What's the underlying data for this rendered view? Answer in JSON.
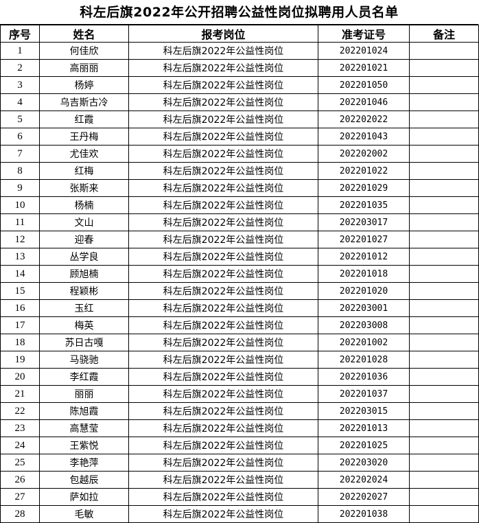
{
  "title": "科左后旗2022年公开招聘公益性岗位拟聘用人员名单",
  "headers": [
    "序号",
    "姓名",
    "报考岗位",
    "准考证号",
    "备注"
  ],
  "rows": [
    [
      "1",
      "何佳欣",
      "科左后旗2022年公益性岗位",
      "202201024",
      ""
    ],
    [
      "2",
      "高丽丽",
      "科左后旗2022年公益性岗位",
      "202201021",
      ""
    ],
    [
      "3",
      "杨婷",
      "科左后旗2022年公益性岗位",
      "202201050",
      ""
    ],
    [
      "4",
      "乌吉斯古冷",
      "科左后旗2022年公益性岗位",
      "202201046",
      ""
    ],
    [
      "5",
      "红霞",
      "科左后旗2022年公益性岗位",
      "202202022",
      ""
    ],
    [
      "6",
      "王丹梅",
      "科左后旗2022年公益性岗位",
      "202201043",
      ""
    ],
    [
      "7",
      "尤佳欢",
      "科左后旗2022年公益性岗位",
      "202202002",
      ""
    ],
    [
      "8",
      "红梅",
      "科左后旗2022年公益性岗位",
      "202201022",
      ""
    ],
    [
      "9",
      "张斯来",
      "科左后旗2022年公益性岗位",
      "202201029",
      ""
    ],
    [
      "10",
      "杨楠",
      "科左后旗2022年公益性岗位",
      "202201035",
      ""
    ],
    [
      "11",
      "文山",
      "科左后旗2022年公益性岗位",
      "202203017",
      ""
    ],
    [
      "12",
      "迎春",
      "科左后旗2022年公益性岗位",
      "202201027",
      ""
    ],
    [
      "13",
      "丛学良",
      "科左后旗2022年公益性岗位",
      "202201012",
      ""
    ],
    [
      "14",
      "顾旭楠",
      "科左后旗2022年公益性岗位",
      "202201018",
      ""
    ],
    [
      "15",
      "程颖彬",
      "科左后旗2022年公益性岗位",
      "202201020",
      ""
    ],
    [
      "16",
      "玉红",
      "科左后旗2022年公益性岗位",
      "202203001",
      ""
    ],
    [
      "17",
      "梅英",
      "科左后旗2022年公益性岗位",
      "202203008",
      ""
    ],
    [
      "18",
      "苏日古嘎",
      "科左后旗2022年公益性岗位",
      "202201002",
      ""
    ],
    [
      "19",
      "马骁驰",
      "科左后旗2022年公益性岗位",
      "202201028",
      ""
    ],
    [
      "20",
      "李红霞",
      "科左后旗2022年公益性岗位",
      "202201036",
      ""
    ],
    [
      "21",
      "丽丽",
      "科左后旗2022年公益性岗位",
      "202201037",
      ""
    ],
    [
      "22",
      "陈旭霞",
      "科左后旗2022年公益性岗位",
      "202203015",
      ""
    ],
    [
      "23",
      "高慧莹",
      "科左后旗2022年公益性岗位",
      "202201013",
      ""
    ],
    [
      "24",
      "王紫悦",
      "科左后旗2022年公益性岗位",
      "202201025",
      ""
    ],
    [
      "25",
      "李艳萍",
      "科左后旗2022年公益性岗位",
      "202203020",
      ""
    ],
    [
      "26",
      "包越辰",
      "科左后旗2022年公益性岗位",
      "202202024",
      ""
    ],
    [
      "27",
      "萨如拉",
      "科左后旗2022年公益性岗位",
      "202202027",
      ""
    ],
    [
      "28",
      "毛敏",
      "科左后旗2022年公益性岗位",
      "202201038",
      ""
    ]
  ]
}
